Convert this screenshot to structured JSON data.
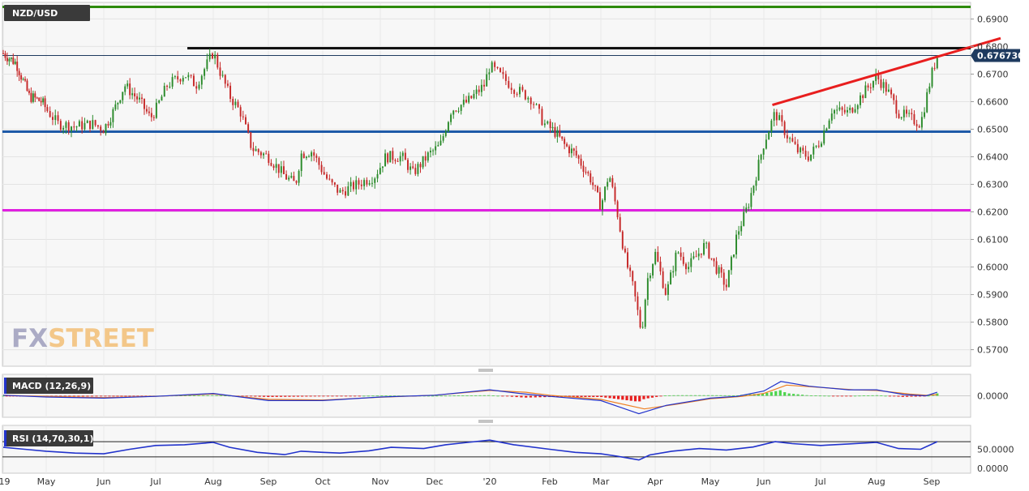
{
  "chart_data": {
    "type": "candlestick",
    "symbol": "NZD/USD",
    "price_axis": {
      "ticks": [
        "0.6900",
        "0.6800",
        "0.6700",
        "0.6600",
        "0.6500",
        "0.6400",
        "0.6300",
        "0.6200",
        "0.6100",
        "0.6000",
        "0.5900",
        "0.5800",
        "0.5700"
      ],
      "ylim": [
        0.564,
        0.696
      ]
    },
    "time_axis": {
      "labels": [
        "'19",
        "May",
        "Jun",
        "Jul",
        "Aug",
        "Sep",
        "Oct",
        "Nov",
        "Dec",
        "'20",
        "Feb",
        "Mar",
        "Apr",
        "May",
        "Jun",
        "Jul",
        "Aug",
        "Sep"
      ],
      "months_index": [
        0,
        1,
        2,
        3,
        4,
        5,
        6,
        7,
        8,
        9,
        10,
        11,
        12,
        13,
        14,
        15,
        16,
        17
      ]
    },
    "current_price_label": "0.676730",
    "current_price": 0.67673,
    "close_path": [
      [
        0,
        0.6775
      ],
      [
        0.3,
        0.674
      ],
      [
        0.6,
        0.662
      ],
      [
        0.9,
        0.66
      ],
      [
        1.2,
        0.652
      ],
      [
        1.5,
        0.651
      ],
      [
        1.8,
        0.652
      ],
      [
        2.0,
        0.65
      ],
      [
        2.2,
        0.657
      ],
      [
        2.4,
        0.666
      ],
      [
        2.7,
        0.66
      ],
      [
        2.9,
        0.654
      ],
      [
        3.0,
        0.657
      ],
      [
        3.2,
        0.666
      ],
      [
        3.5,
        0.67
      ],
      [
        3.7,
        0.666
      ],
      [
        3.85,
        0.672
      ],
      [
        4.0,
        0.678
      ],
      [
        4.1,
        0.672
      ],
      [
        4.3,
        0.662
      ],
      [
        4.5,
        0.656
      ],
      [
        4.7,
        0.643
      ],
      [
        5.0,
        0.64
      ],
      [
        5.3,
        0.633
      ],
      [
        5.5,
        0.63
      ],
      [
        5.6,
        0.641
      ],
      [
        5.8,
        0.642
      ],
      [
        6.1,
        0.631
      ],
      [
        6.3,
        0.627
      ],
      [
        6.6,
        0.63
      ],
      [
        6.9,
        0.633
      ],
      [
        7.1,
        0.64
      ],
      [
        7.4,
        0.64
      ],
      [
        7.6,
        0.634
      ],
      [
        7.9,
        0.641
      ],
      [
        8.1,
        0.644
      ],
      [
        8.3,
        0.657
      ],
      [
        8.6,
        0.66
      ],
      [
        8.9,
        0.666
      ],
      [
        9.0,
        0.673
      ],
      [
        9.15,
        0.67
      ],
      [
        9.4,
        0.665
      ],
      [
        9.7,
        0.661
      ],
      [
        9.9,
        0.652
      ],
      [
        10.1,
        0.649
      ],
      [
        10.3,
        0.644
      ],
      [
        10.5,
        0.641
      ],
      [
        10.8,
        0.632
      ],
      [
        11.0,
        0.622
      ],
      [
        11.15,
        0.634
      ],
      [
        11.3,
        0.62
      ],
      [
        11.45,
        0.603
      ],
      [
        11.6,
        0.592
      ],
      [
        11.75,
        0.576
      ],
      [
        11.85,
        0.595
      ],
      [
        12.0,
        0.605
      ],
      [
        12.2,
        0.59
      ],
      [
        12.4,
        0.606
      ],
      [
        12.6,
        0.6
      ],
      [
        12.9,
        0.608
      ],
      [
        13.1,
        0.6
      ],
      [
        13.3,
        0.593
      ],
      [
        13.5,
        0.612
      ],
      [
        13.7,
        0.622
      ],
      [
        13.85,
        0.633
      ],
      [
        14.0,
        0.645
      ],
      [
        14.2,
        0.656
      ],
      [
        14.4,
        0.648
      ],
      [
        14.6,
        0.642
      ],
      [
        14.8,
        0.64
      ],
      [
        15.0,
        0.646
      ],
      [
        15.2,
        0.657
      ],
      [
        15.5,
        0.656
      ],
      [
        15.8,
        0.664
      ],
      [
        16.0,
        0.669
      ],
      [
        16.2,
        0.664
      ],
      [
        16.4,
        0.656
      ],
      [
        16.6,
        0.654
      ],
      [
        16.8,
        0.652
      ],
      [
        17.0,
        0.67
      ],
      [
        17.1,
        0.6767
      ]
    ],
    "horizontal_levels": [
      {
        "price": 0.6944,
        "color": "#2e8b0c"
      },
      {
        "price": 0.6794,
        "color": "#111111"
      },
      {
        "price": 0.6491,
        "color": "#1e5aa8"
      },
      {
        "price": 0.6206,
        "color": "#e020e0"
      }
    ],
    "trendline": {
      "from": [
        14.15,
        0.6588
      ],
      "to": [
        18.25,
        0.683
      ],
      "color": "#e81e1e"
    },
    "up_color": "#2a8a2a",
    "down_color": "#c62828",
    "macd": {
      "label": "MACD (12,26,9)",
      "zero_label": "0.0000",
      "macd_path": [
        [
          0,
          0.0005
        ],
        [
          1,
          -0.001
        ],
        [
          2,
          -0.002
        ],
        [
          3,
          -0.0005
        ],
        [
          4,
          0.002
        ],
        [
          5,
          -0.004
        ],
        [
          6,
          -0.004
        ],
        [
          7,
          -0.001
        ],
        [
          8,
          0.0005
        ],
        [
          9,
          0.005
        ],
        [
          9.5,
          0.002
        ],
        [
          10,
          -0.0005
        ],
        [
          11,
          -0.004
        ],
        [
          11.7,
          -0.015
        ],
        [
          12.2,
          -0.008
        ],
        [
          13,
          -0.002
        ],
        [
          13.5,
          -0.0005
        ],
        [
          14,
          0.004
        ],
        [
          14.3,
          0.012
        ],
        [
          14.8,
          0.008
        ],
        [
          15.5,
          0.005
        ],
        [
          16,
          0.005
        ],
        [
          16.5,
          0.001
        ],
        [
          16.9,
          0.0
        ],
        [
          17.1,
          0.003
        ]
      ],
      "signal_path": [
        [
          0,
          0.0005
        ],
        [
          1,
          -0.0005
        ],
        [
          2,
          -0.0015
        ],
        [
          3,
          -0.0005
        ],
        [
          4,
          0.0015
        ],
        [
          5,
          -0.003
        ],
        [
          6,
          -0.0035
        ],
        [
          7,
          -0.0012
        ],
        [
          8,
          0.0005
        ],
        [
          9,
          0.0045
        ],
        [
          9.6,
          0.003
        ],
        [
          10,
          0.0005
        ],
        [
          11,
          -0.003
        ],
        [
          11.8,
          -0.011
        ],
        [
          12.4,
          -0.007
        ],
        [
          13,
          -0.0025
        ],
        [
          13.6,
          -0.0005
        ],
        [
          14,
          0.002
        ],
        [
          14.4,
          0.009
        ],
        [
          15,
          0.007
        ],
        [
          15.6,
          0.005
        ],
        [
          16,
          0.0045
        ],
        [
          16.6,
          0.0015
        ],
        [
          16.9,
          0.0005
        ],
        [
          17.1,
          0.001
        ]
      ],
      "macd_color": "#2233cc",
      "signal_color": "#ee7f22",
      "pos_color": "#4cd44c",
      "neg_color": "#e81e1e"
    },
    "rsi": {
      "label": "RSI (14,70,30,1)",
      "ticks": [
        "50.0000",
        "0.0000"
      ],
      "levels": [
        70,
        30
      ],
      "color": "#2233cc",
      "path": [
        [
          0,
          55
        ],
        [
          0.5,
          50
        ],
        [
          1,
          45
        ],
        [
          1.5,
          40
        ],
        [
          2,
          38
        ],
        [
          2.5,
          50
        ],
        [
          3,
          60
        ],
        [
          3.5,
          62
        ],
        [
          4,
          68
        ],
        [
          4.3,
          55
        ],
        [
          4.8,
          42
        ],
        [
          5.3,
          36
        ],
        [
          5.6,
          45
        ],
        [
          6,
          42
        ],
        [
          6.3,
          40
        ],
        [
          6.8,
          46
        ],
        [
          7.2,
          55
        ],
        [
          7.8,
          52
        ],
        [
          8.2,
          62
        ],
        [
          8.6,
          68
        ],
        [
          9,
          74
        ],
        [
          9.4,
          62
        ],
        [
          10,
          50
        ],
        [
          10.5,
          42
        ],
        [
          11,
          38
        ],
        [
          11.3,
          32
        ],
        [
          11.7,
          22
        ],
        [
          11.9,
          35
        ],
        [
          12.3,
          45
        ],
        [
          12.8,
          52
        ],
        [
          13.3,
          48
        ],
        [
          13.8,
          56
        ],
        [
          14.2,
          70
        ],
        [
          14.5,
          65
        ],
        [
          15,
          60
        ],
        [
          15.5,
          64
        ],
        [
          16,
          68
        ],
        [
          16.4,
          52
        ],
        [
          16.8,
          50
        ],
        [
          17.1,
          70
        ]
      ]
    }
  },
  "watermark": {
    "part1": "FX",
    "part2": "STREET"
  }
}
